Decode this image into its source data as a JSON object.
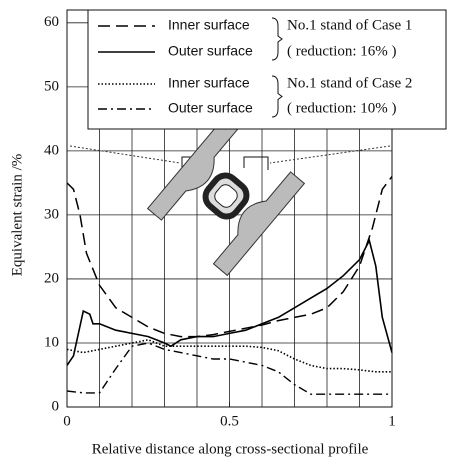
{
  "chart_data": {
    "type": "line",
    "xlabel": "Relative distance along cross-sectional profile",
    "ylabel": "Equivalent strain /%",
    "xlim": [
      0,
      1
    ],
    "ylim": [
      0,
      62
    ],
    "xticks": [
      0,
      0.5,
      1
    ],
    "yticks": [
      0,
      10,
      20,
      30,
      40,
      50,
      60
    ],
    "xgrid": [
      0.1,
      0.2,
      0.3,
      0.4,
      0.5,
      0.6,
      0.7,
      0.8,
      0.9
    ],
    "grid": true,
    "legend_groups": [
      {
        "label": "No.1 stand of Case 1",
        "note": "( reduction: 16% )"
      },
      {
        "label": "No.1 stand of Case 2",
        "note": "( reduction: 10% )"
      }
    ],
    "series": [
      {
        "name": "Inner surface",
        "color": "#000000",
        "style": "dashed",
        "x": [
          0,
          0.02,
          0.04,
          0.06,
          0.1,
          0.15,
          0.2,
          0.25,
          0.3,
          0.35,
          0.4,
          0.45,
          0.5,
          0.55,
          0.6,
          0.65,
          0.7,
          0.75,
          0.8,
          0.85,
          0.9,
          0.94,
          0.97,
          1
        ],
        "values": [
          35,
          34,
          30,
          24,
          19,
          15.5,
          14,
          12.5,
          11.5,
          11,
          11,
          11.3,
          11.8,
          12.3,
          12.8,
          13.5,
          14,
          14.5,
          15.5,
          18,
          22,
          28,
          34,
          36
        ]
      },
      {
        "name": "Outer surface",
        "color": "#000000",
        "style": "solid",
        "x": [
          0,
          0.02,
          0.05,
          0.07,
          0.08,
          0.1,
          0.15,
          0.2,
          0.25,
          0.3,
          0.32,
          0.35,
          0.4,
          0.45,
          0.5,
          0.55,
          0.6,
          0.65,
          0.7,
          0.75,
          0.8,
          0.85,
          0.9,
          0.93,
          0.95,
          0.97,
          1
        ],
        "values": [
          6.5,
          8,
          15,
          14.5,
          13,
          13,
          12,
          11.5,
          11,
          10,
          9.5,
          10.5,
          11,
          11,
          11.5,
          12,
          13,
          14,
          15.5,
          17,
          18.5,
          20.5,
          23,
          26,
          22,
          14,
          8.5
        ]
      },
      {
        "name": "Inner surface",
        "color": "#000000",
        "style": "dotted",
        "x": [
          0,
          0.05,
          0.1,
          0.15,
          0.2,
          0.25,
          0.3,
          0.35,
          0.4,
          0.45,
          0.5,
          0.55,
          0.6,
          0.65,
          0.7,
          0.75,
          0.8,
          0.85,
          0.9,
          0.95,
          1
        ],
        "values": [
          9,
          8.5,
          9,
          9.5,
          10,
          10.5,
          9.5,
          9.5,
          9.5,
          9.5,
          9.5,
          9.5,
          9.3,
          8.8,
          7.5,
          6.5,
          6,
          6,
          5.8,
          5.5,
          5.5
        ]
      },
      {
        "name": "Outer surface",
        "color": "#000000",
        "style": "dashdot",
        "x": [
          0,
          0.05,
          0.1,
          0.15,
          0.2,
          0.25,
          0.3,
          0.35,
          0.4,
          0.45,
          0.5,
          0.55,
          0.6,
          0.65,
          0.7,
          0.75,
          0.8,
          0.85,
          0.9,
          0.95,
          1
        ],
        "values": [
          2.5,
          2.2,
          2.2,
          6,
          9.5,
          10,
          9,
          8.5,
          8,
          7.5,
          7.5,
          7,
          6.5,
          5.5,
          3.5,
          2,
          2,
          2,
          2,
          2,
          2
        ]
      }
    ]
  }
}
